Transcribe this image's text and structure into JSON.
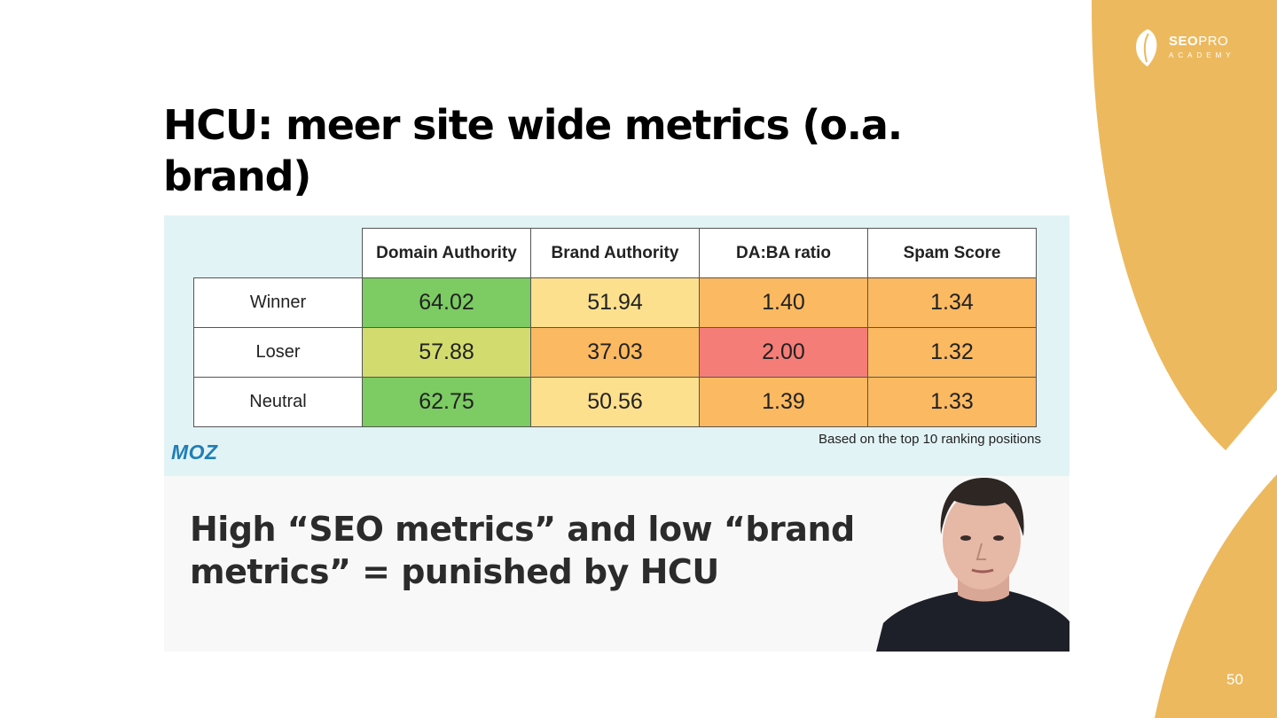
{
  "brand": {
    "name_bold": "SEO",
    "name_light": "PRO",
    "tagline": "ACADEMY",
    "accent_color": "#edb95e"
  },
  "slide": {
    "title": "HCU: meer site wide metrics (o.a. brand)",
    "page_number": "50"
  },
  "table": {
    "headers": [
      "Domain Authority",
      "Brand Authority",
      "DA:BA ratio",
      "Spam Score"
    ],
    "rows": [
      {
        "label": "Winner",
        "values": [
          "64.02",
          "51.94",
          "1.40",
          "1.34"
        ],
        "colors": [
          "#7ccb63",
          "#fde08e",
          "#fbb961",
          "#fbb961"
        ]
      },
      {
        "label": "Loser",
        "values": [
          "57.88",
          "37.03",
          "2.00",
          "1.32"
        ],
        "colors": [
          "#d2dc6e",
          "#fbb961",
          "#f57d78",
          "#fbb961"
        ]
      },
      {
        "label": "Neutral",
        "values": [
          "62.75",
          "50.56",
          "1.39",
          "1.33"
        ],
        "colors": [
          "#7ccb63",
          "#fde08e",
          "#fbb961",
          "#fbb961"
        ]
      }
    ],
    "source_logo": "MOZ",
    "note": "Based on the top 10 ranking positions"
  },
  "quote": {
    "text": "High “SEO metrics” and low “brand metrics” = punished by HCU"
  }
}
